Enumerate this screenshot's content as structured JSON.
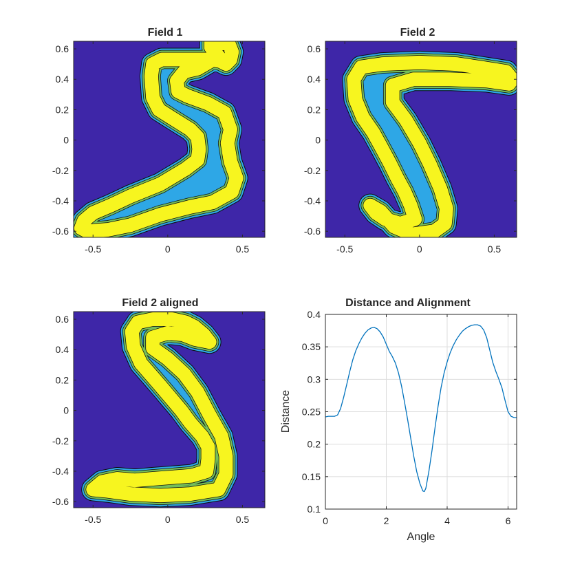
{
  "chart_data": [
    {
      "type": "contour",
      "title": "Field 1",
      "xlim": [
        -0.63,
        0.65
      ],
      "ylim": [
        -0.64,
        0.65
      ],
      "xticks": [
        -0.5,
        0,
        0.5
      ],
      "xtick_labels": [
        "-0.5",
        "0",
        "0.5"
      ],
      "yticks": [
        0.6,
        0.4,
        0.2,
        0,
        -0.2,
        -0.4,
        -0.6
      ],
      "ytick_labels": [
        "0.6",
        "0.4",
        "0.2",
        "0",
        "-0.2",
        "-0.4",
        "-0.6"
      ],
      "background_color": "#3E26A8",
      "level_colors": [
        "#2EA7E6",
        "#75BE59",
        "#F7F51F"
      ],
      "stroke": [
        [
          0.29,
          0.61
        ],
        [
          0.29,
          0.64
        ],
        [
          0.36,
          0.64
        ],
        [
          0.41,
          0.63
        ],
        [
          0.43,
          0.58
        ],
        [
          0.42,
          0.53
        ],
        [
          0.39,
          0.5
        ],
        [
          0.35,
          0.52
        ],
        [
          0.28,
          0.53
        ],
        [
          0.18,
          0.53
        ],
        [
          -0.04,
          0.53
        ],
        [
          -0.1,
          0.5
        ],
        [
          -0.11,
          0.42
        ],
        [
          -0.1,
          0.28
        ],
        [
          -0.06,
          0.2
        ],
        [
          0.02,
          0.15
        ],
        [
          0.15,
          0.07
        ],
        [
          0.2,
          0.02
        ],
        [
          0.21,
          -0.06
        ],
        [
          0.2,
          -0.13
        ],
        [
          0.12,
          -0.19
        ],
        [
          -0.05,
          -0.29
        ],
        [
          -0.25,
          -0.37
        ],
        [
          -0.38,
          -0.43
        ],
        [
          -0.5,
          -0.48
        ],
        [
          -0.56,
          -0.53
        ],
        [
          -0.58,
          -0.58
        ],
        [
          -0.54,
          -0.6
        ],
        [
          -0.4,
          -0.59
        ],
        [
          -0.25,
          -0.56
        ],
        [
          -0.05,
          -0.49
        ],
        [
          0.15,
          -0.44
        ],
        [
          0.3,
          -0.41
        ],
        [
          0.43,
          -0.34
        ],
        [
          0.46,
          -0.25
        ],
        [
          0.42,
          -0.14
        ],
        [
          0.4,
          -0.02
        ],
        [
          0.42,
          0.07
        ],
        [
          0.38,
          0.18
        ],
        [
          0.27,
          0.24
        ],
        [
          0.13,
          0.29
        ],
        [
          0.07,
          0.32
        ],
        [
          0.06,
          0.39
        ],
        [
          0.11,
          0.45
        ],
        [
          0.2,
          0.47
        ],
        [
          0.27,
          0.51
        ],
        [
          0.34,
          0.55
        ]
      ]
    },
    {
      "type": "contour",
      "title": "Field 2",
      "xlim": [
        -0.63,
        0.65
      ],
      "ylim": [
        -0.64,
        0.65
      ],
      "xticks": [
        -0.5,
        0,
        0.5
      ],
      "xtick_labels": [
        "-0.5",
        "0",
        "0.5"
      ],
      "yticks": [
        0.6,
        0.4,
        0.2,
        0,
        -0.2,
        -0.4,
        -0.6
      ],
      "ytick_labels": [
        "0.6",
        "0.4",
        "0.2",
        "0",
        "-0.2",
        "-0.4",
        "-0.6"
      ],
      "background_color": "#3E26A8",
      "level_colors": [
        "#2EA7E6",
        "#75BE59",
        "#F7F51F"
      ],
      "stroke": [
        [
          0.62,
          0.4
        ],
        [
          0.58,
          0.45
        ],
        [
          0.45,
          0.47
        ],
        [
          0.25,
          0.5
        ],
        [
          0.0,
          0.51
        ],
        [
          -0.25,
          0.5
        ],
        [
          -0.39,
          0.48
        ],
        [
          -0.44,
          0.4
        ],
        [
          -0.43,
          0.27
        ],
        [
          -0.38,
          0.15
        ],
        [
          -0.31,
          0.05
        ],
        [
          -0.26,
          -0.04
        ],
        [
          -0.2,
          -0.15
        ],
        [
          -0.15,
          -0.25
        ],
        [
          -0.1,
          -0.34
        ],
        [
          -0.06,
          -0.43
        ],
        [
          -0.03,
          -0.52
        ],
        [
          -0.13,
          -0.55
        ],
        [
          -0.23,
          -0.52
        ],
        [
          -0.29,
          -0.48
        ],
        [
          -0.33,
          -0.43
        ],
        [
          -0.26,
          -0.47
        ],
        [
          -0.17,
          -0.57
        ],
        [
          -0.05,
          -0.62
        ],
        [
          0.1,
          -0.6
        ],
        [
          0.17,
          -0.55
        ],
        [
          0.18,
          -0.45
        ],
        [
          0.14,
          -0.32
        ],
        [
          0.07,
          -0.16
        ],
        [
          0.0,
          -0.02
        ],
        [
          -0.09,
          0.13
        ],
        [
          -0.18,
          0.25
        ],
        [
          -0.18,
          0.36
        ],
        [
          -0.04,
          0.4
        ],
        [
          0.2,
          0.4
        ],
        [
          0.45,
          0.39
        ],
        [
          0.6,
          0.37
        ]
      ]
    },
    {
      "type": "contour",
      "title": "Field 2 aligned",
      "xlim": [
        -0.63,
        0.65
      ],
      "ylim": [
        -0.64,
        0.65
      ],
      "xticks": [
        -0.5,
        0,
        0.5
      ],
      "xtick_labels": [
        "-0.5",
        "0",
        "0.5"
      ],
      "yticks": [
        0.6,
        0.4,
        0.2,
        0,
        -0.2,
        -0.4,
        -0.6
      ],
      "ytick_labels": [
        "0.6",
        "0.4",
        "0.2",
        "0",
        "-0.2",
        "-0.4",
        "-0.6"
      ],
      "background_color": "#3E26A8",
      "level_colors": [
        "#2EA7E6",
        "#75BE59",
        "#F7F51F"
      ],
      "stroke": [
        [
          0.28,
          0.45
        ],
        [
          0.24,
          0.5
        ],
        [
          0.18,
          0.55
        ],
        [
          0.12,
          0.58
        ],
        [
          0.03,
          0.6
        ],
        [
          -0.1,
          0.6
        ],
        [
          -0.2,
          0.58
        ],
        [
          -0.24,
          0.52
        ],
        [
          -0.23,
          0.42
        ],
        [
          -0.18,
          0.31
        ],
        [
          -0.1,
          0.22
        ],
        [
          -0.03,
          0.14
        ],
        [
          0.03,
          0.07
        ],
        [
          0.09,
          0.0
        ],
        [
          0.15,
          -0.08
        ],
        [
          0.23,
          -0.17
        ],
        [
          0.27,
          -0.24
        ],
        [
          0.27,
          -0.32
        ],
        [
          0.26,
          -0.4
        ],
        [
          0.16,
          -0.43
        ],
        [
          0.03,
          -0.44
        ],
        [
          -0.1,
          -0.45
        ],
        [
          -0.22,
          -0.46
        ],
        [
          -0.34,
          -0.45
        ],
        [
          -0.44,
          -0.47
        ],
        [
          -0.5,
          -0.52
        ],
        [
          -0.4,
          -0.53
        ],
        [
          -0.25,
          -0.55
        ],
        [
          -0.05,
          -0.56
        ],
        [
          0.15,
          -0.55
        ],
        [
          0.34,
          -0.52
        ],
        [
          0.39,
          -0.42
        ],
        [
          0.39,
          -0.3
        ],
        [
          0.36,
          -0.17
        ],
        [
          0.28,
          -0.03
        ],
        [
          0.2,
          0.12
        ],
        [
          0.11,
          0.24
        ],
        [
          0.0,
          0.34
        ],
        [
          -0.1,
          0.41
        ],
        [
          -0.1,
          0.48
        ],
        [
          0.0,
          0.51
        ],
        [
          0.1,
          0.5
        ],
        [
          0.18,
          0.47
        ]
      ]
    },
    {
      "type": "line",
      "title": "Distance and Alignment",
      "xlabel": "Angle",
      "ylabel": "Distance",
      "xlim": [
        0,
        6.2832
      ],
      "ylim": [
        0.1,
        0.4
      ],
      "xticks": [
        0,
        2,
        4,
        6
      ],
      "xtick_labels": [
        "0",
        "2",
        "4",
        "6"
      ],
      "yticks": [
        0.1,
        0.15,
        0.2,
        0.25,
        0.3,
        0.35,
        0.4
      ],
      "ytick_labels": [
        "0.1",
        "0.15",
        "0.2",
        "0.25",
        "0.3",
        "0.35",
        "0.4"
      ],
      "grid": true,
      "line_color": "#0072BD",
      "x": [
        0,
        0.1,
        0.2,
        0.3,
        0.4,
        0.5,
        0.6,
        0.7,
        0.8,
        0.9,
        1.0,
        1.1,
        1.2,
        1.3,
        1.4,
        1.5,
        1.6,
        1.7,
        1.8,
        1.9,
        2.0,
        2.1,
        2.2,
        2.3,
        2.4,
        2.5,
        2.6,
        2.7,
        2.8,
        2.9,
        3.0,
        3.1,
        3.2,
        3.25,
        3.3,
        3.4,
        3.5,
        3.6,
        3.7,
        3.8,
        3.9,
        4.0,
        4.1,
        4.2,
        4.3,
        4.4,
        4.5,
        4.6,
        4.7,
        4.8,
        4.9,
        5.0,
        5.1,
        5.2,
        5.3,
        5.4,
        5.5,
        5.6,
        5.7,
        5.8,
        5.9,
        6.0,
        6.1,
        6.2,
        6.2832
      ],
      "values": [
        0.242,
        0.243,
        0.243,
        0.243,
        0.245,
        0.255,
        0.272,
        0.292,
        0.312,
        0.33,
        0.344,
        0.355,
        0.364,
        0.371,
        0.376,
        0.379,
        0.38,
        0.378,
        0.373,
        0.365,
        0.354,
        0.343,
        0.335,
        0.325,
        0.31,
        0.29,
        0.265,
        0.238,
        0.21,
        0.182,
        0.158,
        0.14,
        0.128,
        0.127,
        0.132,
        0.158,
        0.19,
        0.225,
        0.258,
        0.287,
        0.31,
        0.327,
        0.341,
        0.352,
        0.361,
        0.368,
        0.374,
        0.378,
        0.381,
        0.383,
        0.384,
        0.384,
        0.382,
        0.376,
        0.364,
        0.345,
        0.326,
        0.312,
        0.3,
        0.287,
        0.268,
        0.25,
        0.243,
        0.241,
        0.241
      ]
    }
  ]
}
